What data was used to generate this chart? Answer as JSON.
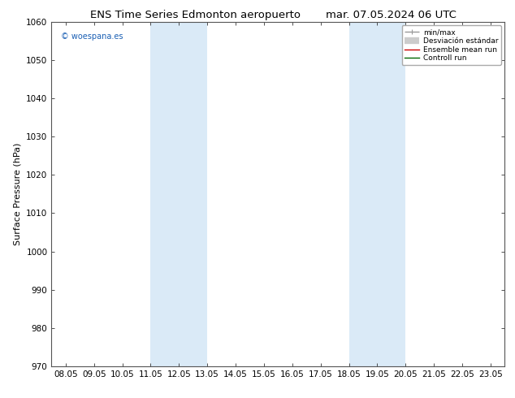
{
  "title_left": "ENS Time Series Edmonton aeropuerto",
  "title_right": "mar. 07.05.2024 06 UTC",
  "ylabel": "Surface Pressure (hPa)",
  "ylim": [
    970,
    1060
  ],
  "yticks": [
    970,
    980,
    990,
    1000,
    1010,
    1020,
    1030,
    1040,
    1050,
    1060
  ],
  "xtick_labels": [
    "08.05",
    "09.05",
    "10.05",
    "11.05",
    "12.05",
    "13.05",
    "14.05",
    "15.05",
    "16.05",
    "17.05",
    "18.05",
    "19.05",
    "20.05",
    "21.05",
    "22.05",
    "23.05"
  ],
  "shaded_bands": [
    {
      "xstart": 3,
      "xend": 5
    },
    {
      "xstart": 10,
      "xend": 12
    }
  ],
  "shade_color": "#daeaf7",
  "watermark": "© woespana.es",
  "legend_entries": [
    {
      "label": "min/max",
      "color": "#999999",
      "lw": 1.0
    },
    {
      "label": "Desviación estándar",
      "color": "#cccccc",
      "lw": 6
    },
    {
      "label": "Ensemble mean run",
      "color": "#cc0000",
      "lw": 1.0
    },
    {
      "label": "Controll run",
      "color": "#006600",
      "lw": 1.0
    }
  ],
  "bg_color": "#ffffff",
  "plot_bg_color": "#ffffff",
  "title_fontsize": 9.5,
  "axis_fontsize": 8,
  "tick_fontsize": 7.5
}
